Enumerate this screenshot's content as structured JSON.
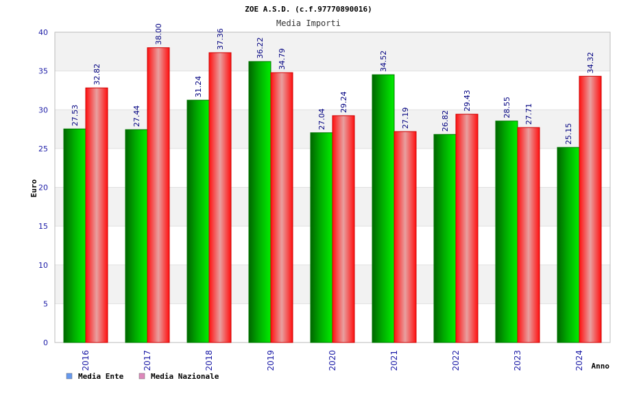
{
  "chart_data": {
    "type": "bar",
    "title": "ZOE A.S.D. (c.f.97770890016)",
    "subtitle": "Media Importi",
    "ylabel": "Euro",
    "xlabel": "Anno",
    "categories": [
      "2016",
      "2017",
      "2018",
      "2019",
      "2020",
      "2021",
      "2022",
      "2023",
      "2024"
    ],
    "series": [
      {
        "name": "Media Ente",
        "color": "#00cc00",
        "values": [
          27.53,
          27.44,
          31.24,
          36.22,
          27.04,
          34.52,
          26.82,
          28.55,
          25.15
        ],
        "labels": [
          "27.53",
          "27.44",
          "31.24",
          "36.22",
          "27.04",
          "34.52",
          "26.82",
          "28.55",
          "25.15"
        ]
      },
      {
        "name": "Media Nazionale",
        "color": "#ff0000",
        "values": [
          32.82,
          38.0,
          37.36,
          34.79,
          29.24,
          27.19,
          29.43,
          27.71,
          34.32
        ],
        "labels": [
          "32.82",
          "38.00",
          "37.36",
          "34.79",
          "29.24",
          "27.19",
          "29.43",
          "27.71",
          "34.32"
        ]
      }
    ],
    "ylim": [
      0,
      40
    ],
    "yticks": [
      0,
      5,
      10,
      15,
      20,
      25,
      30,
      35,
      40
    ],
    "grid": true,
    "legend_position": "bottom-left",
    "legend_swatch_colors": [
      "#6699ee",
      "#dd88bb"
    ]
  }
}
